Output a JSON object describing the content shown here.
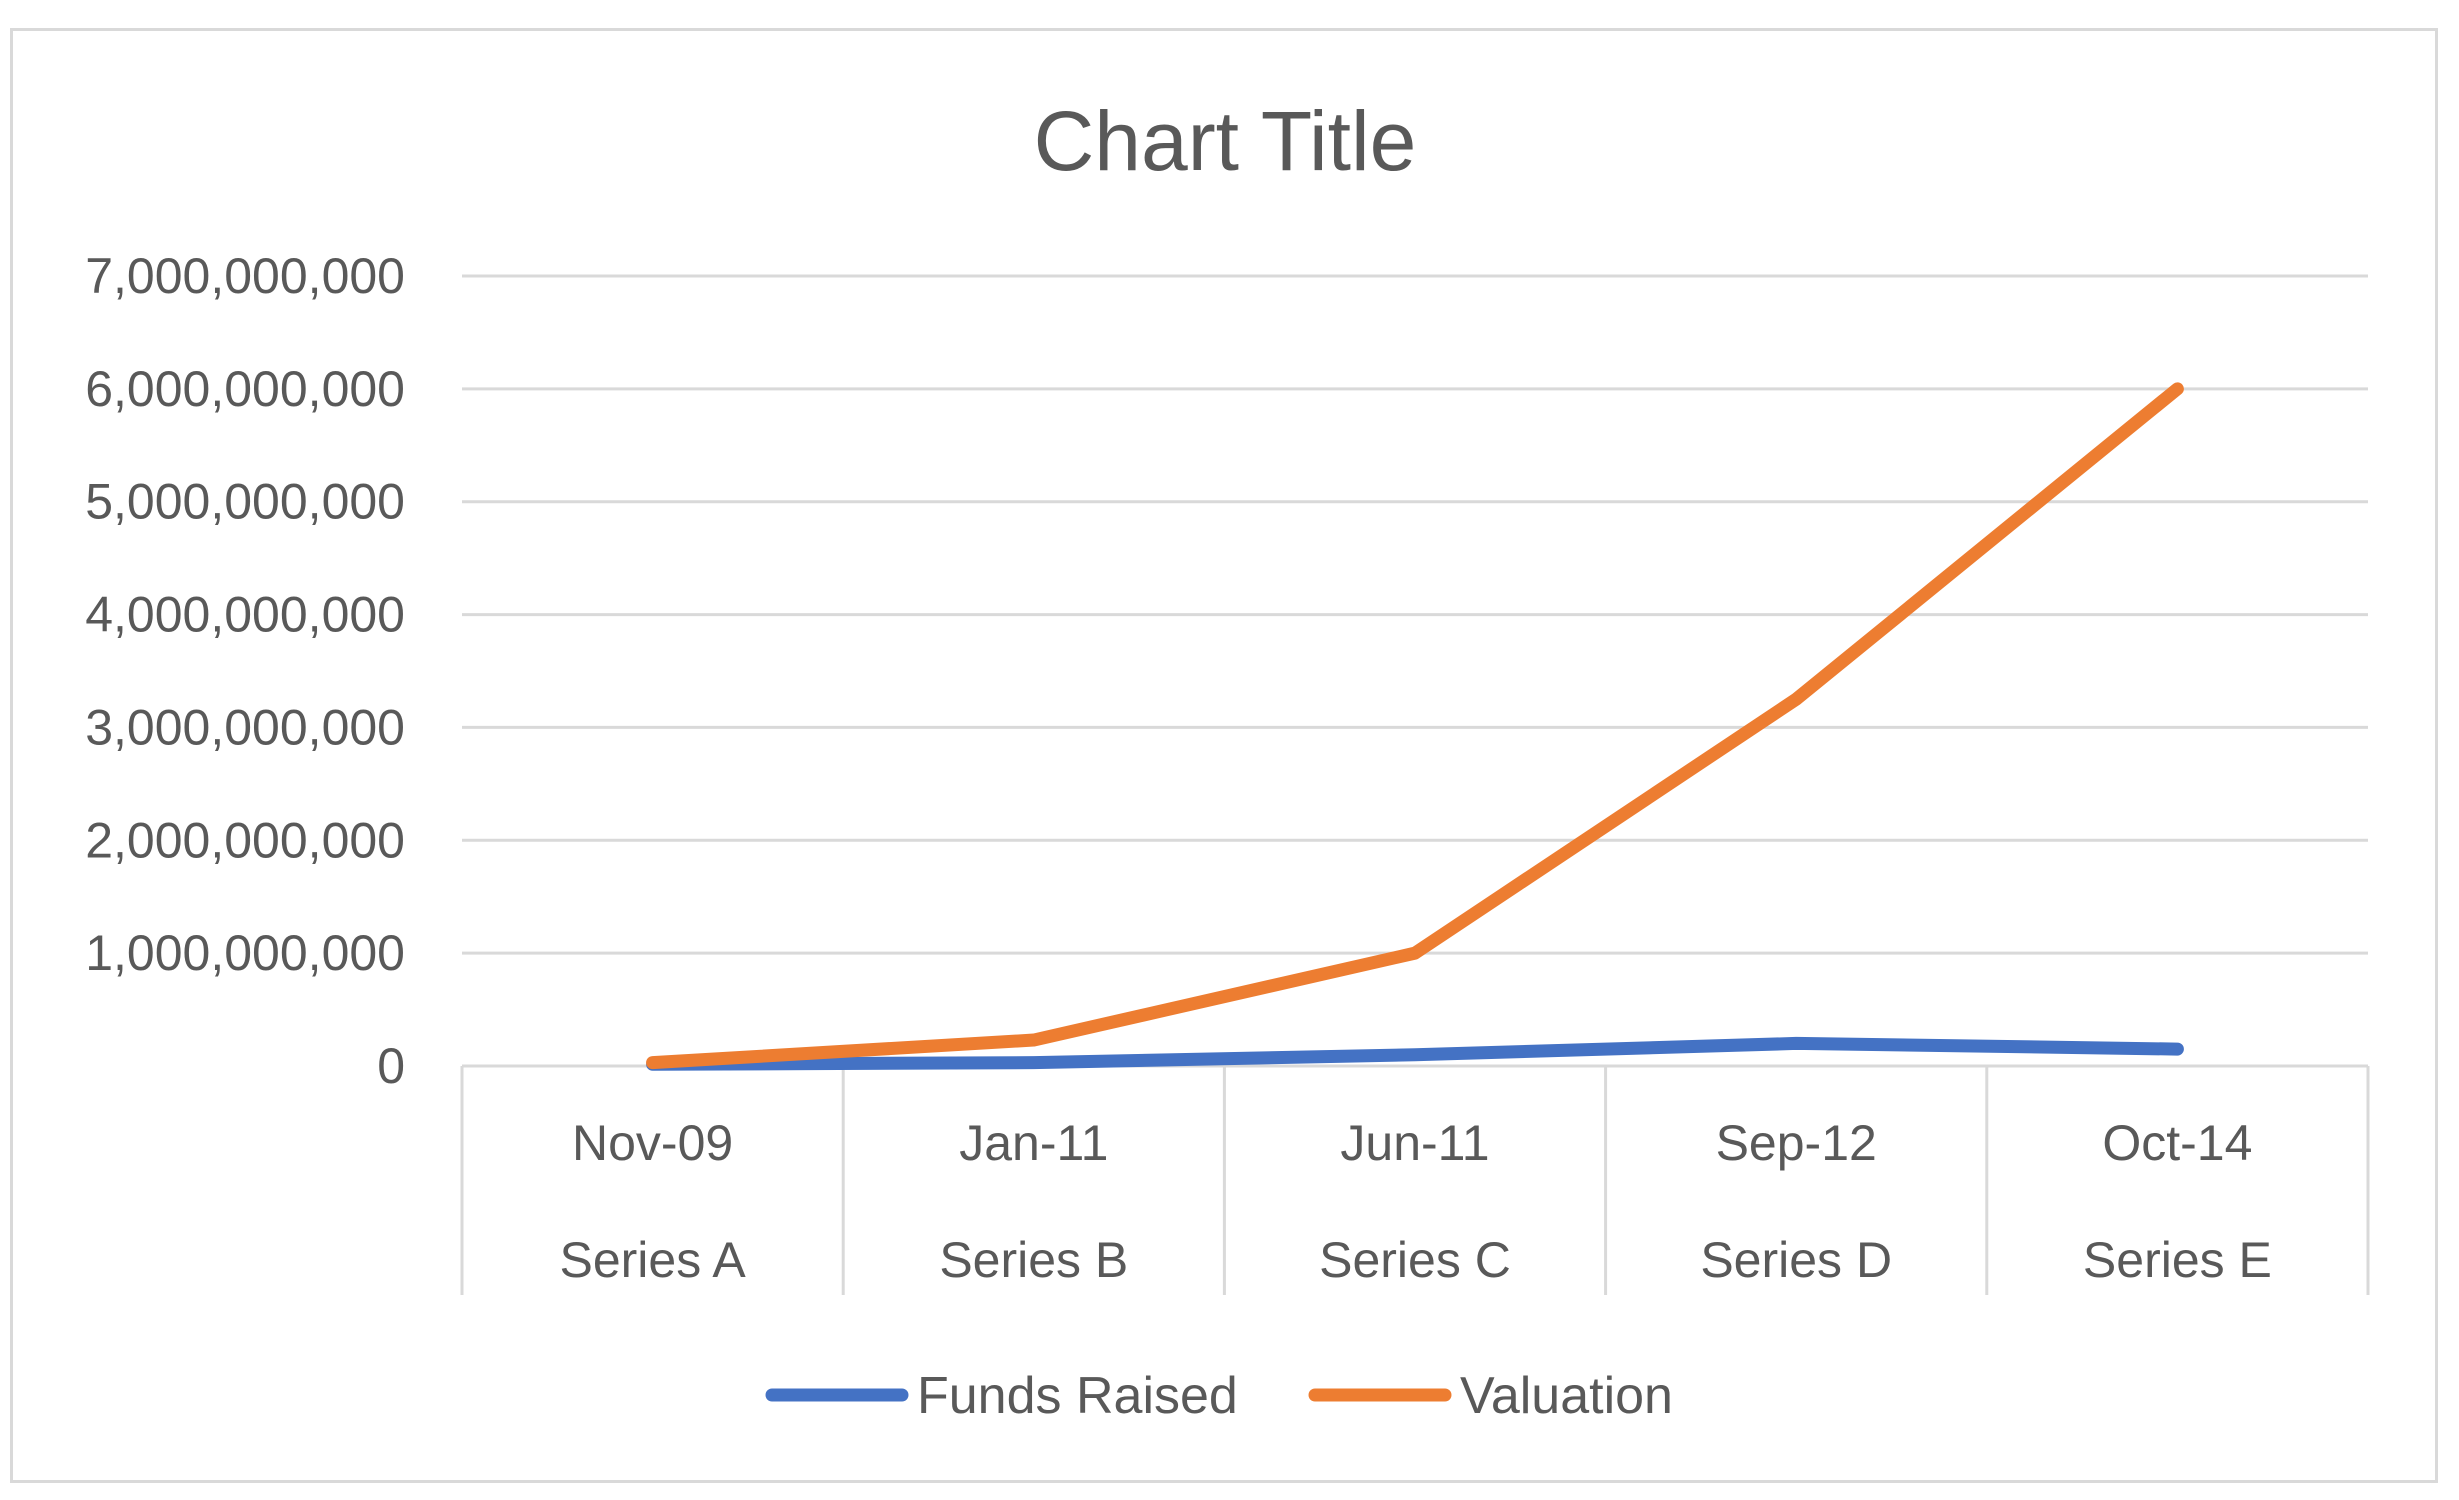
{
  "chart_data": {
    "type": "line",
    "title": "Chart Title",
    "xlabel": "",
    "ylabel": "",
    "categories": [
      [
        "Nov-09",
        "Series A"
      ],
      [
        "Jan-11",
        "Series B"
      ],
      [
        "Jun-11",
        "Series C"
      ],
      [
        "Sep-12",
        "Series D"
      ],
      [
        "Oct-14",
        "Series E"
      ]
    ],
    "y_ticks": [
      "0",
      "1,000,000,000",
      "2,000,000,000",
      "3,000,000,000",
      "4,000,000,000",
      "5,000,000,000",
      "6,000,000,000",
      "7,000,000,000"
    ],
    "ylim": [
      0,
      7000000000
    ],
    "grid": true,
    "legend_position": "bottom",
    "series": [
      {
        "name": "Funds Raised",
        "color": "#4472c4",
        "values": [
          15000000,
          30000000,
          100000000,
          200000000,
          150000000
        ]
      },
      {
        "name": "Valuation",
        "color": "#ed7d31",
        "values": [
          30000000,
          230000000,
          1000000000,
          3250000000,
          6000000000
        ]
      }
    ]
  }
}
